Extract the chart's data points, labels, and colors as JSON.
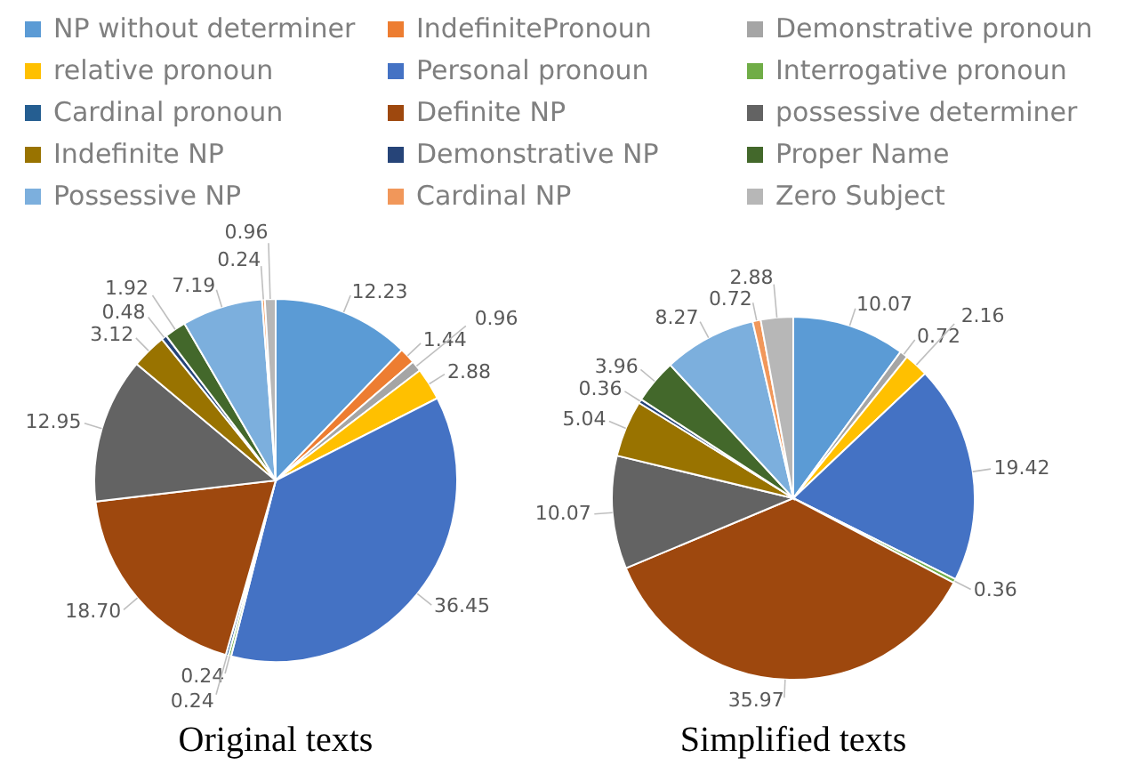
{
  "chart_data": [
    {
      "type": "pie",
      "title": "Original texts",
      "legend": "top",
      "value_labels": [
        "12.23",
        "1.44",
        "0.96",
        "2.88",
        "36.45",
        "0.24",
        "0.24",
        "18.70",
        "12.95",
        "3.12",
        "0.48",
        "1.92",
        "7.19",
        "0.24",
        "0.96"
      ],
      "categories": [
        "NP without determiner",
        "IndefinitePronoun",
        "Demonstrative pronoun",
        "relative pronoun",
        "Personal pronoun",
        "Interrogative pronoun",
        "Cardinal pronoun",
        "Definite NP",
        "possessive determiner",
        "Indefinite NP",
        "Demonstrative NP",
        "Proper Name",
        "Possessive NP",
        "Cardinal NP",
        "Zero Subject"
      ],
      "values": [
        12.23,
        1.44,
        0.96,
        2.88,
        36.45,
        0.24,
        0.24,
        18.7,
        12.95,
        3.12,
        0.48,
        1.92,
        7.19,
        0.24,
        0.96
      ],
      "colors": [
        "#5b9bd5",
        "#ed7d31",
        "#a5a5a5",
        "#ffc000",
        "#4472c4",
        "#70ad47",
        "#255e91",
        "#9e480e",
        "#636363",
        "#997300",
        "#264478",
        "#43682b",
        "#7cafdd",
        "#f1975a",
        "#b7b7b7"
      ]
    },
    {
      "type": "pie",
      "title": "Simplified texts",
      "value_labels": [
        "10.07",
        "0.72",
        "2.16",
        "19.42",
        "0.36",
        "35.97",
        "10.07",
        "5.04",
        "0.36",
        "3.96",
        "8.27",
        "0.72",
        "2.88"
      ],
      "categories": [
        null,
        null,
        null,
        null,
        null,
        null,
        null,
        null,
        null,
        null,
        null,
        null,
        null
      ],
      "values": [
        10.07,
        0.72,
        2.16,
        19.42,
        0.36,
        35.97,
        10.07,
        5.04,
        0.36,
        3.96,
        8.27,
        0.72,
        2.88
      ],
      "colors": [
        "#5b9bd5",
        "#a5a5a5",
        "#ffc000",
        "#4472c4",
        "#70ad47",
        "#9e480e",
        "#636363",
        "#997300",
        "#264478",
        "#43682b",
        "#7cafdd",
        "#f1975a",
        "#b7b7b7"
      ]
    }
  ]
}
